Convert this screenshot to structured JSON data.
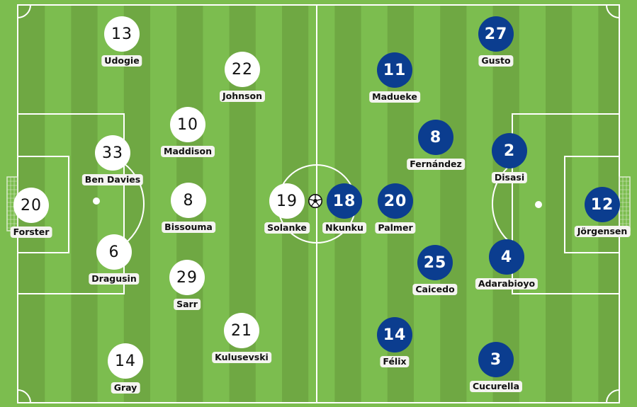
{
  "colors": {
    "grass_light": "#7cbd4f",
    "grass_dark": "#6fa843",
    "home": "#ffffff",
    "away": "#0b3d8f"
  },
  "home_team": [
    {
      "number": "13",
      "name": "Udogie"
    },
    {
      "number": "22",
      "name": "Johnson"
    },
    {
      "number": "10",
      "name": "Maddison"
    },
    {
      "number": "33",
      "name": "Ben Davies"
    },
    {
      "number": "20",
      "name": "Forster"
    },
    {
      "number": "8",
      "name": "Bissouma"
    },
    {
      "number": "19",
      "name": "Solanke"
    },
    {
      "number": "6",
      "name": "Dragusin"
    },
    {
      "number": "29",
      "name": "Sarr"
    },
    {
      "number": "21",
      "name": "Kulusevski"
    },
    {
      "number": "14",
      "name": "Gray"
    }
  ],
  "away_team": [
    {
      "number": "27",
      "name": "Gusto"
    },
    {
      "number": "11",
      "name": "Madueke"
    },
    {
      "number": "8",
      "name": "Fernández"
    },
    {
      "number": "2",
      "name": "Disasi"
    },
    {
      "number": "18",
      "name": "Nkunku"
    },
    {
      "number": "20",
      "name": "Palmer"
    },
    {
      "number": "12",
      "name": "Jörgensen"
    },
    {
      "number": "25",
      "name": "Caicedo"
    },
    {
      "number": "4",
      "name": "Adarabioyo"
    },
    {
      "number": "14",
      "name": "Félix"
    },
    {
      "number": "3",
      "name": "Cucurella"
    }
  ],
  "ball_icon": "soccer-ball-icon"
}
